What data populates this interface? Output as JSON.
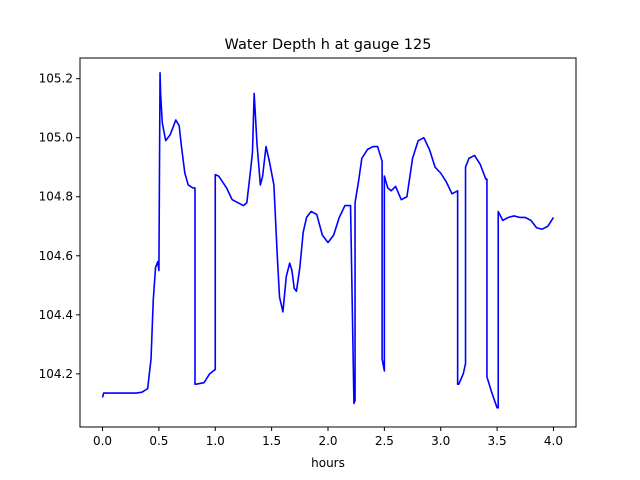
{
  "chart_data": {
    "type": "line",
    "title": "Water Depth h at gauge 125",
    "xlabel": "hours",
    "ylabel": "",
    "xlim": [
      -0.2,
      4.2
    ],
    "ylim": [
      104.02,
      105.27
    ],
    "xticks": [
      0.0,
      0.5,
      1.0,
      1.5,
      2.0,
      2.5,
      3.0,
      3.5,
      4.0
    ],
    "xtick_labels": [
      "0.0",
      "0.5",
      "1.0",
      "1.5",
      "2.0",
      "2.5",
      "3.0",
      "3.5",
      "4.0"
    ],
    "yticks": [
      104.2,
      104.4,
      104.6,
      104.8,
      105.0,
      105.2
    ],
    "ytick_labels": [
      "104.2",
      "104.4",
      "104.6",
      "104.8",
      "105.0",
      "105.2"
    ],
    "grid": false,
    "line_color": "#0000ff",
    "series": [
      {
        "x": [
          0.0,
          0.01,
          0.1,
          0.2,
          0.3,
          0.35,
          0.4,
          0.43,
          0.45,
          0.47,
          0.49,
          0.5,
          0.51,
          0.515,
          0.515,
          0.53,
          0.56,
          0.6,
          0.65,
          0.68,
          0.7,
          0.73,
          0.76,
          0.8,
          0.82,
          0.82,
          0.83,
          0.9,
          0.95,
          1.0,
          1.0,
          1.03,
          1.1,
          1.15,
          1.2,
          1.25,
          1.28,
          1.31,
          1.33,
          1.345,
          1.37,
          1.4,
          1.42,
          1.45,
          1.48,
          1.52,
          1.55,
          1.57,
          1.6,
          1.63,
          1.66,
          1.68,
          1.7,
          1.72,
          1.75,
          1.78,
          1.81,
          1.85,
          1.9,
          1.95,
          2.0,
          2.05,
          2.1,
          2.15,
          2.2,
          2.23,
          2.23,
          2.24,
          2.24,
          2.27,
          2.3,
          2.35,
          2.4,
          2.44,
          2.48,
          2.48,
          2.5,
          2.5,
          2.53,
          2.56,
          2.6,
          2.65,
          2.7,
          2.75,
          2.8,
          2.85,
          2.9,
          2.95,
          3.0,
          3.05,
          3.1,
          3.15,
          3.15,
          3.16,
          3.2,
          3.22,
          3.22,
          3.25,
          3.3,
          3.35,
          3.4,
          3.41,
          3.41,
          3.45,
          3.5,
          3.51,
          3.51,
          3.55,
          3.6,
          3.65,
          3.7,
          3.75,
          3.8,
          3.85,
          3.9,
          3.95,
          4.0
        ],
        "y": [
          104.12,
          104.135,
          104.135,
          104.135,
          104.135,
          104.138,
          104.15,
          104.25,
          104.45,
          104.56,
          104.58,
          104.55,
          105.22,
          105.15,
          105.15,
          105.05,
          104.99,
          105.01,
          105.06,
          105.04,
          104.97,
          104.88,
          104.84,
          104.83,
          104.83,
          104.165,
          104.165,
          104.17,
          104.2,
          104.215,
          104.875,
          104.87,
          104.83,
          104.79,
          104.78,
          104.77,
          104.78,
          104.88,
          104.95,
          105.15,
          104.98,
          104.84,
          104.87,
          104.97,
          104.92,
          104.84,
          104.6,
          104.46,
          104.41,
          104.53,
          104.575,
          104.55,
          104.49,
          104.48,
          104.56,
          104.68,
          104.73,
          104.75,
          104.74,
          104.67,
          104.645,
          104.67,
          104.73,
          104.77,
          104.77,
          104.1,
          104.1,
          104.11,
          104.78,
          104.85,
          104.93,
          104.96,
          104.97,
          104.97,
          104.92,
          104.25,
          104.21,
          104.87,
          104.83,
          104.82,
          104.835,
          104.79,
          104.8,
          104.93,
          104.99,
          105.0,
          104.96,
          104.9,
          104.88,
          104.85,
          104.81,
          104.82,
          104.165,
          104.165,
          104.2,
          104.235,
          104.9,
          104.93,
          104.94,
          104.91,
          104.86,
          104.86,
          104.19,
          104.14,
          104.085,
          104.085,
          104.75,
          104.72,
          104.73,
          104.735,
          104.73,
          104.73,
          104.72,
          104.695,
          104.69,
          104.7,
          104.73
        ]
      }
    ]
  }
}
